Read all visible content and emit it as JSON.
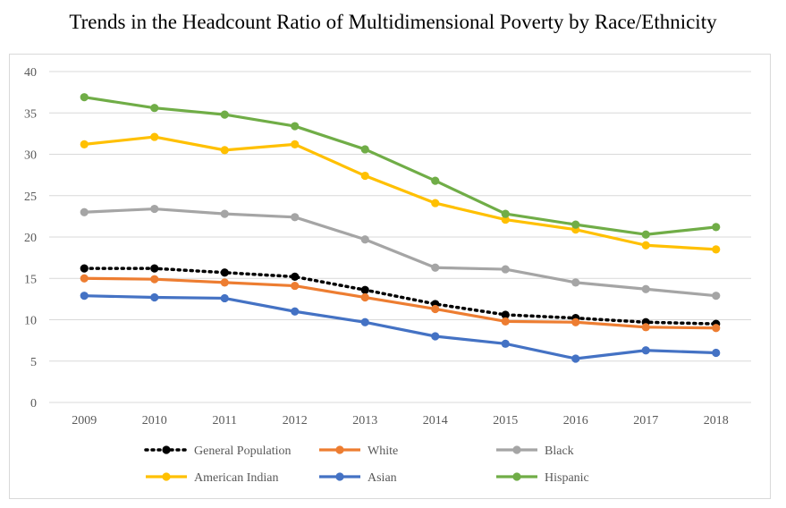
{
  "chart_data": {
    "type": "line",
    "title": "Trends in the Headcount Ratio of Multidimensional Poverty by Race/Ethnicity",
    "xlabel": "",
    "ylabel": "",
    "ylim": [
      0,
      40
    ],
    "yticks": [
      "0",
      "5",
      "10",
      "15",
      "20",
      "25",
      "30",
      "35",
      "40"
    ],
    "categories": [
      "2009",
      "2010",
      "2011",
      "2012",
      "2013",
      "2014",
      "2015",
      "2016",
      "2017",
      "2018"
    ],
    "grid": true,
    "legend_position": "bottom",
    "series": [
      {
        "name": "General Population",
        "color": "#000000",
        "style": "dotted",
        "values": [
          16.2,
          16.2,
          15.7,
          15.2,
          13.6,
          11.9,
          10.6,
          10.2,
          9.7,
          9.5
        ]
      },
      {
        "name": "White",
        "color": "#ed7d31",
        "style": "solid",
        "values": [
          15.0,
          14.9,
          14.5,
          14.1,
          12.7,
          11.3,
          9.8,
          9.7,
          9.1,
          9.0
        ]
      },
      {
        "name": "Black",
        "color": "#a5a5a5",
        "style": "solid",
        "values": [
          23.0,
          23.4,
          22.8,
          22.4,
          19.7,
          16.3,
          16.1,
          14.5,
          13.7,
          12.9
        ]
      },
      {
        "name": "American Indian",
        "color": "#ffc000",
        "style": "solid",
        "values": [
          31.2,
          32.1,
          30.5,
          31.2,
          27.4,
          24.1,
          22.1,
          20.9,
          19.0,
          18.5
        ]
      },
      {
        "name": "Asian",
        "color": "#4472c4",
        "style": "solid",
        "values": [
          12.9,
          12.7,
          12.6,
          11.0,
          9.7,
          8.0,
          7.1,
          5.3,
          6.3,
          6.0
        ]
      },
      {
        "name": "Hispanic",
        "color": "#70ad47",
        "style": "solid",
        "values": [
          36.9,
          35.6,
          34.8,
          33.4,
          30.6,
          26.8,
          22.8,
          21.5,
          20.3,
          21.2
        ]
      }
    ]
  }
}
